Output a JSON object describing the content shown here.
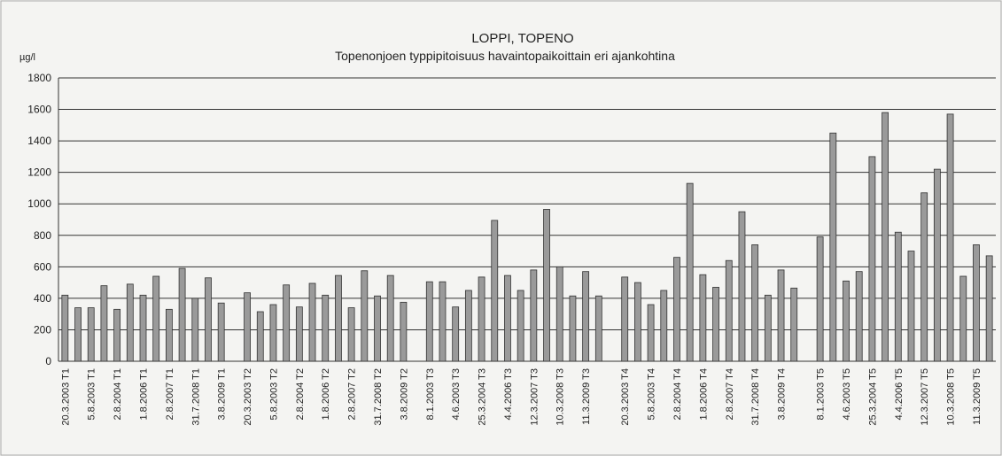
{
  "chart_data": {
    "type": "bar",
    "title": "LOPPI, TOPENO",
    "subtitle": "Topenonjoen typpipitoisuus havaintopaikoittain eri ajankohtina",
    "y_label": "µg/l",
    "categories": [
      "20.3.2003 T1",
      null,
      "5.8.2003 T1",
      null,
      "2.8.2004 T1",
      null,
      "1.8.2006 T1",
      null,
      "2.8.2007 T1",
      null,
      "31.7.2008 T1",
      null,
      "3.8.2009 T1",
      null,
      "20.3.2003 T2",
      null,
      "5.8.2003 T2",
      null,
      "2.8.2004 T2",
      null,
      "1.8.2006 T2",
      null,
      "2.8.2007 T2",
      null,
      "31.7.2008 T2",
      null,
      "3.8.2009 T2",
      null,
      "8.1.2003 T3",
      null,
      "4.6.2003 T3",
      null,
      "25.3.2004 T3",
      null,
      "4.4.2006 T3",
      null,
      "12.3.2007 T3",
      null,
      "10.3.2008 T3",
      null,
      "11.3.2009 T3",
      null,
      null,
      "20.3.2003 T4",
      null,
      "5.8.2003 T4",
      null,
      "2.8.2004 T4",
      null,
      "1.8.2006 T4",
      null,
      "2.8.2007 T4",
      null,
      "31.7.2008 T4",
      null,
      "3.8.2009 T4",
      null,
      null,
      "8.1.2003 T5",
      null,
      "4.6.2003 T5",
      null,
      "25.3.2004 T5",
      null,
      "4.4.2006 T5",
      null,
      "12.3.2007 T5",
      null,
      "10.3.2008 T5",
      null,
      "11.3.2009 T5",
      null
    ],
    "values": [
      420,
      340,
      340,
      480,
      330,
      490,
      420,
      540,
      330,
      590,
      400,
      530,
      370,
      null,
      435,
      315,
      360,
      485,
      345,
      495,
      420,
      545,
      340,
      575,
      415,
      545,
      375,
      null,
      505,
      505,
      345,
      450,
      535,
      895,
      545,
      450,
      580,
      965,
      600,
      415,
      570,
      415,
      null,
      535,
      500,
      360,
      450,
      660,
      1130,
      550,
      470,
      640,
      950,
      740,
      420,
      580,
      465,
      null,
      790,
      1450,
      510,
      570,
      1300,
      1580,
      820,
      700,
      1070,
      1220,
      1570,
      540,
      740,
      670
    ],
    "color": "#9a9a9a",
    "ylim": [
      0,
      1800
    ],
    "yticks": [
      0,
      200,
      400,
      600,
      800,
      1000,
      1200,
      1400,
      1600,
      1800
    ],
    "grid": true
  }
}
